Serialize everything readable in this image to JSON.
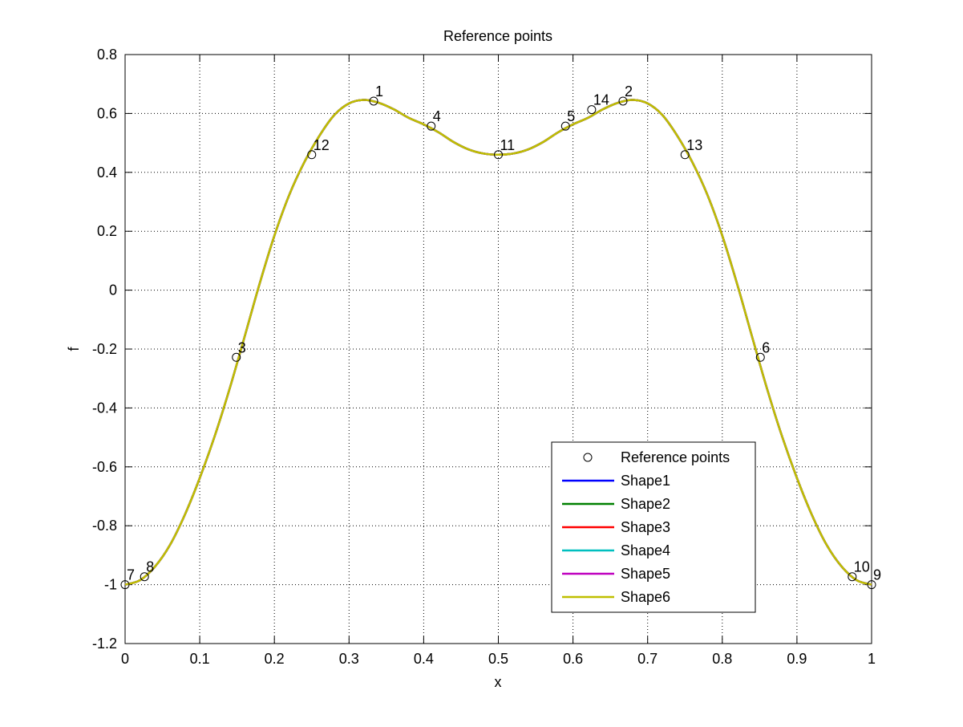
{
  "chart_data": {
    "type": "line",
    "title": "Reference points",
    "xlabel": "x",
    "ylabel": "f",
    "xlim": [
      0,
      1
    ],
    "ylim": [
      -1.2,
      0.8
    ],
    "xticks": [
      0,
      0.1,
      0.2,
      0.3,
      0.4,
      0.5,
      0.6,
      0.7,
      0.8,
      0.9,
      1
    ],
    "xtick_labels": [
      "0",
      "0.1",
      "0.2",
      "0.3",
      "0.4",
      "0.5",
      "0.6",
      "0.7",
      "0.8",
      "0.9",
      "1"
    ],
    "yticks": [
      -1.2,
      -1,
      -0.8,
      -0.6,
      -0.4,
      -0.2,
      0,
      0.2,
      0.4,
      0.6,
      0.8
    ],
    "ytick_labels": [
      "-1.2",
      "-1",
      "-0.8",
      "-0.6",
      "-0.4",
      "-0.2",
      "0",
      "0.2",
      "0.4",
      "0.6",
      "0.8"
    ],
    "grid": true,
    "legend_position": "bottom-right",
    "reference_points": {
      "name": "Reference points",
      "marker": "circle",
      "color": "#000000",
      "points": [
        {
          "label": "1",
          "x": 0.333,
          "y": 0.642
        },
        {
          "label": "2",
          "x": 0.667,
          "y": 0.642
        },
        {
          "label": "3",
          "x": 0.149,
          "y": -0.228
        },
        {
          "label": "4",
          "x": 0.41,
          "y": 0.557
        },
        {
          "label": "5",
          "x": 0.59,
          "y": 0.557
        },
        {
          "label": "6",
          "x": 0.851,
          "y": -0.228
        },
        {
          "label": "7",
          "x": 0.0,
          "y": -1.0
        },
        {
          "label": "8",
          "x": 0.026,
          "y": -0.973
        },
        {
          "label": "9",
          "x": 1.0,
          "y": -1.0
        },
        {
          "label": "10",
          "x": 0.974,
          "y": -0.973
        },
        {
          "label": "11",
          "x": 0.5,
          "y": 0.46
        },
        {
          "label": "12",
          "x": 0.25,
          "y": 0.46
        },
        {
          "label": "13",
          "x": 0.75,
          "y": 0.46
        },
        {
          "label": "14",
          "x": 0.625,
          "y": 0.613
        }
      ]
    },
    "series": [
      {
        "name": "Shape1",
        "color": "#0000ff"
      },
      {
        "name": "Shape2",
        "color": "#008000"
      },
      {
        "name": "Shape3",
        "color": "#ff0000"
      },
      {
        "name": "Shape4",
        "color": "#00bfbf"
      },
      {
        "name": "Shape5",
        "color": "#bf00bf"
      },
      {
        "name": "Shape6",
        "color": "#bfbf00"
      }
    ],
    "curve": {
      "x": [
        0,
        0.02,
        0.04,
        0.06,
        0.08,
        0.1,
        0.12,
        0.14,
        0.16,
        0.18,
        0.2,
        0.22,
        0.24,
        0.26,
        0.28,
        0.3,
        0.32,
        0.34,
        0.36,
        0.38,
        0.4,
        0.42,
        0.44,
        0.46,
        0.48,
        0.5,
        0.52,
        0.54,
        0.56,
        0.58,
        0.6,
        0.62,
        0.64,
        0.66,
        0.68,
        0.7,
        0.72,
        0.74,
        0.76,
        0.78,
        0.8,
        0.82,
        0.84,
        0.86,
        0.88,
        0.9,
        0.92,
        0.94,
        0.96,
        0.98,
        1
      ],
      "y": [
        -1.0,
        -0.985,
        -0.939,
        -0.866,
        -0.763,
        -0.638,
        -0.496,
        -0.335,
        -0.159,
        0.02,
        0.185,
        0.324,
        0.434,
        0.523,
        0.594,
        0.634,
        0.646,
        0.636,
        0.614,
        0.585,
        0.563,
        0.536,
        0.503,
        0.478,
        0.464,
        0.46,
        0.464,
        0.478,
        0.503,
        0.536,
        0.563,
        0.585,
        0.614,
        0.636,
        0.646,
        0.634,
        0.594,
        0.523,
        0.434,
        0.324,
        0.185,
        0.02,
        -0.159,
        -0.335,
        -0.496,
        -0.638,
        -0.763,
        -0.866,
        -0.939,
        -0.985,
        -1.0
      ]
    }
  }
}
